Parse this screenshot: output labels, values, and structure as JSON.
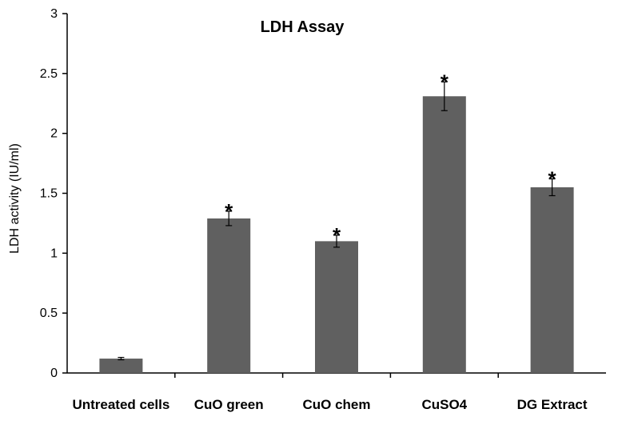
{
  "chart_data": {
    "type": "bar",
    "title": "LDH Assay",
    "xlabel": "",
    "ylabel": "LDH activity (IU/ml)",
    "categories": [
      "Untreated cells",
      "CuO green",
      "CuO chem",
      "CuSO4",
      "DG Extract"
    ],
    "values": [
      0.12,
      1.29,
      1.1,
      2.31,
      1.55
    ],
    "errors": [
      0.01,
      0.06,
      0.05,
      0.12,
      0.07
    ],
    "annotations": [
      "",
      "*",
      "*",
      "*",
      "*"
    ],
    "ylim": [
      0,
      3
    ],
    "yticks": [
      "0",
      "0.5",
      "1",
      "1.5",
      "2",
      "2.5",
      "3"
    ],
    "grid": false,
    "legend": "none",
    "bar_color": "#606060"
  }
}
